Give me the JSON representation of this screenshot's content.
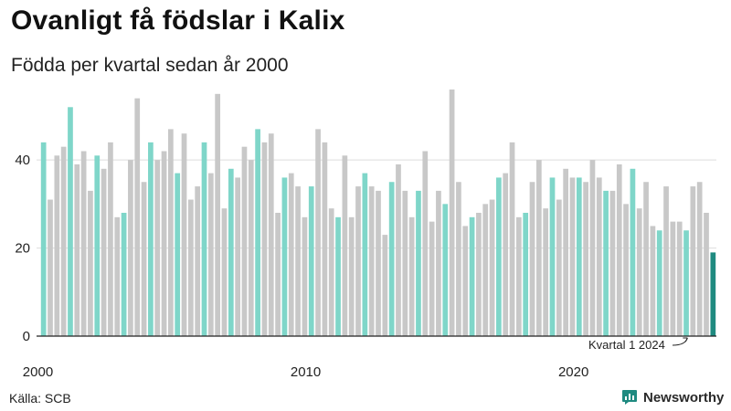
{
  "title": "Ovanligt få födslar i Kalix",
  "subtitle": "Födda per kvartal sedan år 2000",
  "source": "Källa: SCB",
  "brand": "Newsworthy",
  "colors": {
    "q1": "#7fd6c9",
    "other": "#c8c8c8",
    "latest": "#1f8a80",
    "gridline": "#dddddd",
    "axis": "#222222"
  },
  "chart_data": {
    "type": "bar",
    "title": "Födda per kvartal sedan år 2000",
    "xlabel": "",
    "ylabel": "",
    "ylim": [
      0,
      56
    ],
    "yticks": [
      0,
      20,
      40
    ],
    "start_year": 2000,
    "xtick_labels": [
      {
        "label": "2000",
        "year": 2000
      },
      {
        "label": "2010",
        "year": 2010
      },
      {
        "label": "2020",
        "year": 2020
      }
    ],
    "highlight": "Q1 (first quarter) bars shown in light teal; latest quarter in dark teal",
    "annotation": "Kvartal 1 2024",
    "values": [
      44,
      31,
      41,
      43,
      52,
      39,
      42,
      33,
      41,
      38,
      44,
      27,
      28,
      40,
      54,
      35,
      44,
      40,
      42,
      47,
      37,
      46,
      31,
      34,
      44,
      37,
      55,
      29,
      38,
      36,
      43,
      40,
      47,
      44,
      46,
      28,
      36,
      37,
      34,
      27,
      34,
      47,
      44,
      29,
      27,
      41,
      27,
      34,
      37,
      34,
      33,
      23,
      35,
      39,
      33,
      27,
      33,
      42,
      26,
      33,
      30,
      56,
      35,
      25,
      27,
      28,
      30,
      31,
      36,
      37,
      44,
      27,
      28,
      35,
      40,
      29,
      36,
      31,
      38,
      36,
      36,
      35,
      40,
      36,
      33,
      33,
      39,
      30,
      38,
      29,
      35,
      25,
      24,
      34,
      26,
      26,
      24,
      34,
      35,
      28,
      19
    ]
  }
}
